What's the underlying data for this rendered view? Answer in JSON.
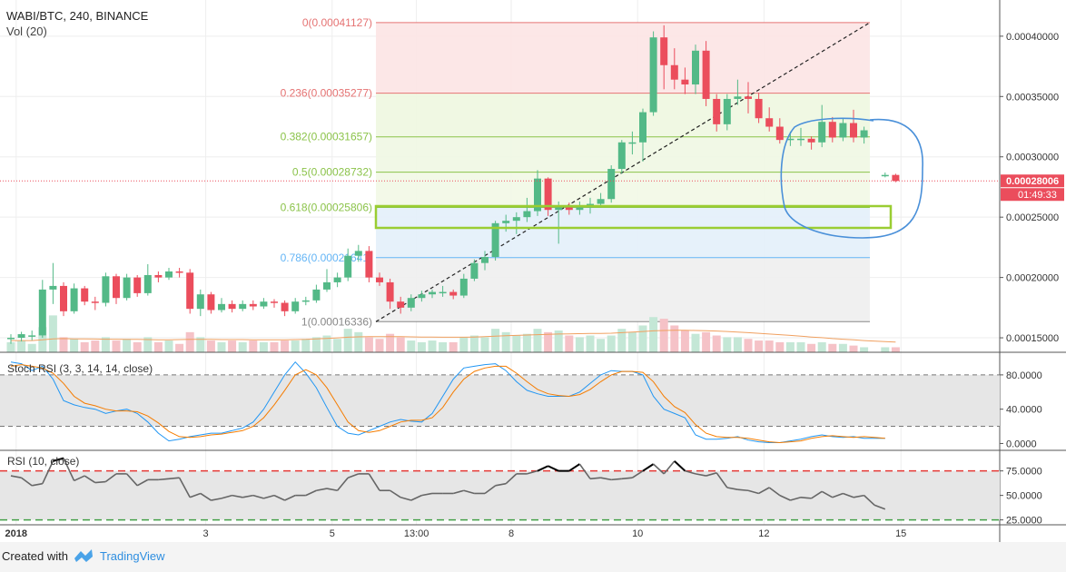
{
  "header": {
    "symbol": "WABI/BTC, 240, BINANCE",
    "volume_label": "Vol (20)"
  },
  "footer": {
    "created_with": "Created with",
    "brand": "TradingView"
  },
  "colors": {
    "up": "#53b987",
    "down": "#eb4d5c",
    "fib_red": "#e57373",
    "fib_green": "#8bc34a",
    "fib_blue": "#64b5f6",
    "price_tag": "#eb4d5c",
    "annotation": "#4a90d9",
    "highlight_box": "#9acd32"
  },
  "chart_data": [
    {
      "type": "candlestick",
      "title": "WABI/BTC, 240, BINANCE",
      "x_ticks": [
        "2018",
        "3",
        "5",
        "13:00",
        "8",
        "10",
        "12",
        "15"
      ],
      "x_tick_positions": [
        0.5,
        18.5,
        30.5,
        38.5,
        47.5,
        59.5,
        71.5,
        84.5
      ],
      "y_ticks": [
        "0.00040000",
        "0.00035000",
        "0.00030000",
        "0.00025000",
        "0.00020000",
        "0.00015000"
      ],
      "ylim": [
        0.000138,
        0.00043
      ],
      "grid": true,
      "current_price": "0.00028006",
      "countdown": "01:49:33",
      "fibonacci": [
        {
          "level": "0",
          "price": "0.00041127",
          "value": 0.00041127
        },
        {
          "level": "0.236",
          "price": "0.00035277",
          "value": 0.00035277
        },
        {
          "level": "0.382",
          "price": "0.00031657",
          "value": 0.00031657
        },
        {
          "level": "0.5",
          "price": "0.00028732",
          "value": 0.00028732
        },
        {
          "level": "0.618",
          "price": "0.00025806",
          "value": 0.00025806
        },
        {
          "level": "0.786",
          "price": "0.00021641",
          "value": 0.00021641
        },
        {
          "level": "1",
          "price": "0.00016336",
          "value": 0.00016336
        }
      ],
      "candles": [
        [
          0.00015,
          0.00015,
          0.000145,
          0.000153
        ],
        [
          0.00015,
          0.000153,
          0.000147,
          0.000155
        ],
        [
          0.000152,
          0.000152,
          0.000148,
          0.000156
        ],
        [
          0.000152,
          0.00019,
          0.00015,
          0.000198
        ],
        [
          0.00019,
          0.000193,
          0.000178,
          0.000212
        ],
        [
          0.000193,
          0.000172,
          0.000168,
          0.000196
        ],
        [
          0.000172,
          0.000191,
          0.00017,
          0.000195
        ],
        [
          0.000191,
          0.00018,
          0.000177,
          0.000193
        ],
        [
          0.00018,
          0.000179,
          0.000173,
          0.000184
        ],
        [
          0.000179,
          0.000201,
          0.000176,
          0.000204
        ],
        [
          0.000201,
          0.000183,
          0.000178,
          0.000203
        ],
        [
          0.000183,
          0.0002,
          0.000181,
          0.000203
        ],
        [
          0.0002,
          0.000187,
          0.000184,
          0.000202
        ],
        [
          0.000187,
          0.000202,
          0.000185,
          0.000211
        ],
        [
          0.000202,
          0.0002,
          0.000196,
          0.000205
        ],
        [
          0.0002,
          0.000205,
          0.000198,
          0.000208
        ],
        [
          0.000205,
          0.000204,
          0.0002,
          0.000208
        ],
        [
          0.000204,
          0.000174,
          0.00017,
          0.000207
        ],
        [
          0.000174,
          0.000186,
          0.000168,
          0.00019
        ],
        [
          0.000186,
          0.000173,
          0.00017,
          0.000188
        ],
        [
          0.000173,
          0.000178,
          0.000171,
          0.000183
        ],
        [
          0.000178,
          0.000174,
          0.000171,
          0.000181
        ],
        [
          0.000174,
          0.000178,
          0.000172,
          0.000181
        ],
        [
          0.000178,
          0.000176,
          0.000173,
          0.000181
        ],
        [
          0.000176,
          0.00018,
          0.000174,
          0.000183
        ],
        [
          0.00018,
          0.000179,
          0.000175,
          0.000182
        ],
        [
          0.000179,
          0.000172,
          0.000168,
          0.000181
        ],
        [
          0.000172,
          0.00018,
          0.00017,
          0.000183
        ],
        [
          0.00018,
          0.000181,
          0.000177,
          0.000184
        ],
        [
          0.000181,
          0.00019,
          0.000179,
          0.000194
        ],
        [
          0.00019,
          0.000196,
          0.000188,
          0.000207
        ],
        [
          0.000196,
          0.0002,
          0.000192,
          0.000204
        ],
        [
          0.0002,
          0.000218,
          0.000197,
          0.000224
        ],
        [
          0.000218,
          0.000222,
          0.000213,
          0.000227
        ],
        [
          0.000222,
          0.0002,
          0.000196,
          0.000226
        ],
        [
          0.0002,
          0.000196,
          0.000193,
          0.000204
        ],
        [
          0.000196,
          0.00018,
          0.000174,
          0.000199
        ],
        [
          0.00018,
          0.000175,
          0.00017,
          0.000184
        ],
        [
          0.000175,
          0.000183,
          0.000172,
          0.000186
        ],
        [
          0.000183,
          0.000186,
          0.00018,
          0.000189
        ],
        [
          0.000186,
          0.000188,
          0.000183,
          0.00019
        ],
        [
          0.000188,
          0.000188,
          0.000184,
          0.000193
        ],
        [
          0.000188,
          0.000185,
          0.000182,
          0.00019
        ],
        [
          0.000185,
          0.000199,
          0.000183,
          0.000203
        ],
        [
          0.000199,
          0.000212,
          0.000197,
          0.000215
        ],
        [
          0.000212,
          0.000217,
          0.000206,
          0.000222
        ],
        [
          0.000217,
          0.000245,
          0.000214,
          0.000247
        ],
        [
          0.000245,
          0.000247,
          0.000238,
          0.000252
        ],
        [
          0.000247,
          0.00025,
          0.000236,
          0.000254
        ],
        [
          0.00025,
          0.000255,
          0.000246,
          0.000266
        ],
        [
          0.000255,
          0.000282,
          0.000251,
          0.000289
        ],
        [
          0.000282,
          0.000256,
          0.000251,
          0.000283
        ],
        [
          0.000256,
          0.000258,
          0.000228,
          0.000263
        ],
        [
          0.000258,
          0.000256,
          0.000252,
          0.000262
        ],
        [
          0.000256,
          0.000258,
          0.000252,
          0.000263
        ],
        [
          0.000258,
          0.000261,
          0.000253,
          0.000266
        ],
        [
          0.000261,
          0.000265,
          0.000258,
          0.00027
        ],
        [
          0.000265,
          0.00029,
          0.000262,
          0.000293
        ],
        [
          0.00029,
          0.000312,
          0.000286,
          0.000314
        ],
        [
          0.000312,
          0.000312,
          0.000302,
          0.000321
        ],
        [
          0.000312,
          0.000337,
          0.000296,
          0.00034
        ],
        [
          0.000337,
          0.000399,
          0.000334,
          0.000404
        ],
        [
          0.000399,
          0.000376,
          0.000356,
          0.000409
        ],
        [
          0.000376,
          0.000364,
          0.000356,
          0.00039
        ],
        [
          0.000364,
          0.00036,
          0.000352,
          0.000374
        ],
        [
          0.00036,
          0.000388,
          0.000352,
          0.000393
        ],
        [
          0.000388,
          0.000348,
          0.000342,
          0.000396
        ],
        [
          0.000348,
          0.000327,
          0.000321,
          0.000352
        ],
        [
          0.000327,
          0.000348,
          0.000322,
          0.000352
        ],
        [
          0.000348,
          0.00035,
          0.000343,
          0.000364
        ],
        [
          0.00035,
          0.000348,
          0.000336,
          0.000362
        ],
        [
          0.000348,
          0.000332,
          0.000328,
          0.000353
        ],
        [
          0.000332,
          0.000325,
          0.000321,
          0.000341
        ],
        [
          0.000325,
          0.000314,
          0.000311,
          0.000332
        ],
        [
          0.000314,
          0.000315,
          0.000309,
          0.000321
        ],
        [
          0.000315,
          0.000315,
          0.000309,
          0.000324
        ],
        [
          0.000315,
          0.000312,
          0.000306,
          0.000317
        ],
        [
          0.000312,
          0.000329,
          0.000308,
          0.000343
        ],
        [
          0.000329,
          0.000316,
          0.000312,
          0.000333
        ],
        [
          0.000316,
          0.000328,
          0.000313,
          0.000332
        ],
        [
          0.000328,
          0.000316,
          0.000312,
          0.000339
        ],
        [
          0.000316,
          0.000322,
          0.000311,
          0.000325
        ],
        [
          null,
          null,
          null,
          null
        ],
        [
          0.000284,
          0.000285,
          0.000283,
          0.000287
        ],
        [
          0.000285,
          0.00028,
          0.000279,
          0.000286
        ]
      ],
      "volume": [
        6,
        7,
        5,
        15,
        22,
        9,
        8,
        6,
        7,
        9,
        7,
        8,
        6,
        9,
        6,
        7,
        5,
        12,
        9,
        7,
        6,
        7,
        6,
        7,
        6,
        6,
        7,
        7,
        8,
        9,
        10,
        8,
        14,
        12,
        9,
        8,
        11,
        9,
        7,
        6,
        7,
        6,
        6,
        9,
        10,
        9,
        14,
        12,
        10,
        11,
        14,
        12,
        13,
        10,
        9,
        10,
        8,
        10,
        14,
        12,
        16,
        21,
        20,
        16,
        13,
        11,
        12,
        10,
        9,
        9,
        8,
        7,
        7,
        6,
        6,
        6,
        5,
        6,
        5,
        5,
        4,
        3,
        0,
        3,
        3
      ],
      "ma": [
        7,
        7,
        7,
        7.4,
        8,
        8.2,
        8,
        8,
        7.9,
        7.8,
        7.8,
        7.7,
        7.7,
        7.6,
        7.5,
        7.5,
        7.6,
        7.7,
        7.7,
        7.7,
        7.6,
        7.6,
        7.6,
        7.5,
        7.5,
        7.5,
        7.5,
        7.6,
        7.7,
        8,
        8.3,
        8.6,
        9,
        9.2,
        9.3,
        9.3,
        9.3,
        9.3,
        9.2,
        9.1,
        9.1,
        9,
        9,
        9,
        9.1,
        9.3,
        9.6,
        9.9,
        10.1,
        10.3,
        10.5,
        10.7,
        10.9,
        11,
        11.1,
        11.2,
        11.2,
        11.4,
        11.7,
        12,
        12.4,
        12.8,
        13,
        13.1,
        13.1,
        13,
        12.9,
        12.7,
        12.4,
        12.1,
        11.7,
        11.3,
        10.9,
        10.5,
        10.1,
        9.6,
        9.1,
        8.7,
        8.2,
        7.8,
        7.4,
        7,
        null,
        6.4,
        6.1
      ],
      "ylim_volume": [
        0,
        26
      ]
    },
    {
      "type": "line",
      "title": "Stoch RSI (3, 3, 14, 14, close)",
      "y_ticks": [
        "80.0000",
        "40.0000",
        "0.0000"
      ],
      "ylim": [
        -8,
        100
      ],
      "bands": [
        20,
        80
      ],
      "series": [
        {
          "values": [
            95,
            93,
            85,
            90,
            75,
            50,
            45,
            42,
            40,
            35,
            38,
            40,
            35,
            25,
            12,
            3,
            5,
            8,
            10,
            12,
            12,
            15,
            18,
            25,
            40,
            60,
            80,
            95,
            82,
            65,
            42,
            20,
            12,
            10,
            15,
            20,
            25,
            28,
            26,
            25,
            35,
            55,
            75,
            88,
            90,
            92,
            93,
            85,
            72,
            62,
            58,
            55,
            55,
            55,
            60,
            70,
            80,
            85,
            84,
            84,
            80,
            55,
            40,
            35,
            30,
            10,
            5,
            5,
            6,
            8,
            4,
            2,
            1,
            1,
            3,
            5,
            8,
            10,
            8,
            7,
            8,
            6,
            6,
            6
          ]
        },
        {
          "values": [
            90,
            92,
            90,
            88,
            82,
            70,
            55,
            47,
            44,
            40,
            38,
            38,
            37,
            32,
            24,
            14,
            8,
            7,
            8,
            10,
            11,
            13,
            15,
            20,
            30,
            45,
            62,
            80,
            86,
            80,
            65,
            45,
            25,
            15,
            13,
            15,
            20,
            25,
            27,
            27,
            30,
            42,
            60,
            75,
            84,
            88,
            90,
            90,
            82,
            72,
            63,
            58,
            56,
            55,
            57,
            63,
            72,
            80,
            84,
            84,
            83,
            72,
            55,
            43,
            36,
            22,
            12,
            8,
            7,
            7,
            6,
            4,
            2,
            1,
            2,
            3,
            6,
            8,
            9,
            8,
            7,
            8,
            7,
            6
          ]
        }
      ]
    },
    {
      "type": "line",
      "title": "RSI (10, close)",
      "y_ticks": [
        "75.0000",
        "50.0000",
        "25.0000"
      ],
      "ylim": [
        20,
        96
      ],
      "bands": [
        25,
        75
      ],
      "series": [
        {
          "values": [
            70,
            68,
            60,
            62,
            85,
            88,
            65,
            70,
            63,
            64,
            72,
            72,
            60,
            66,
            66,
            67,
            68,
            48,
            52,
            45,
            47,
            50,
            48,
            50,
            47,
            50,
            45,
            50,
            50,
            55,
            57,
            55,
            68,
            72,
            72,
            55,
            55,
            48,
            45,
            50,
            52,
            52,
            52,
            55,
            52,
            52,
            60,
            62,
            72,
            72,
            75,
            80,
            75,
            75,
            82,
            67,
            68,
            66,
            67,
            68,
            75,
            82,
            72,
            85,
            75,
            72,
            70,
            73,
            58,
            56,
            55,
            52,
            58,
            50,
            45,
            48,
            47,
            54,
            48,
            52,
            48,
            50,
            40,
            36
          ]
        }
      ]
    }
  ]
}
